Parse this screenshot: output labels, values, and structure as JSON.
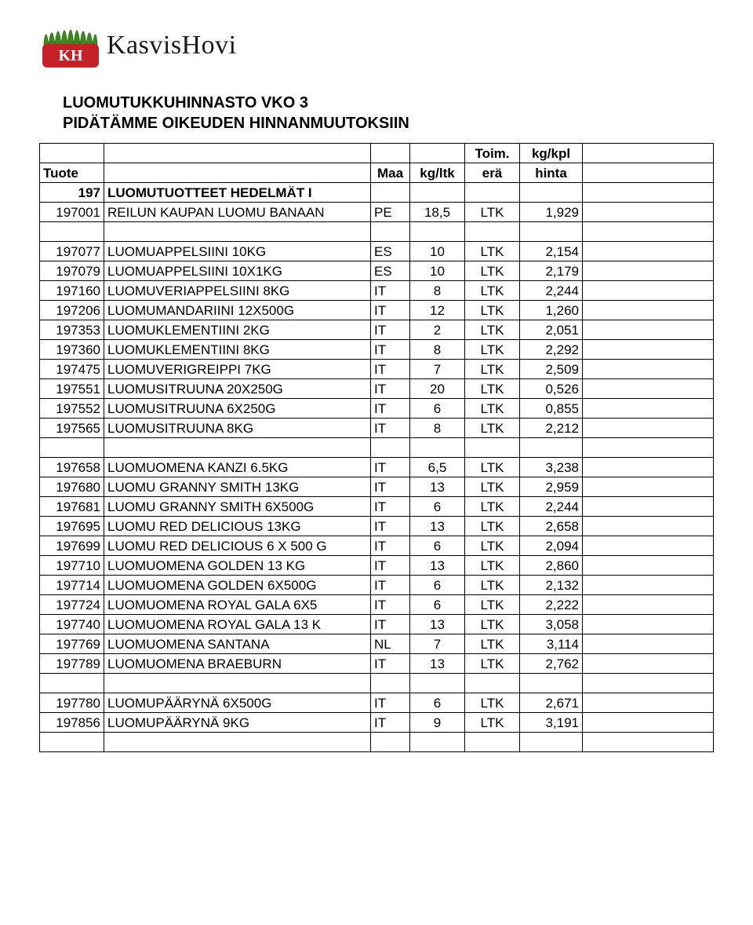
{
  "brand": {
    "name": "KasvisHovi"
  },
  "title": {
    "line1": "LUOMUTUKKUHINNASTO VKO 3",
    "line2": "PIDÄTÄMME OIKEUDEN HINNANMUUTOKSIIN"
  },
  "header": {
    "tuote": "Tuote",
    "maa": "Maa",
    "kg": "kg/ltk",
    "toim": "Toim.",
    "era": "erä",
    "kgkpl": "kg/kpl",
    "hinta": "hinta"
  },
  "category": {
    "code": "197",
    "name": "LUOMUTUOTTEET HEDELMÄT I"
  },
  "rows": [
    {
      "code": "197001",
      "name": "REILUN KAUPAN LUOMU BANAAN",
      "maa": "PE",
      "kg": "18,5",
      "era": "LTK",
      "hinta": "1,929"
    },
    null,
    {
      "code": "197077",
      "name": "LUOMUAPPELSIINI 10KG",
      "maa": "ES",
      "kg": "10",
      "era": "LTK",
      "hinta": "2,154"
    },
    {
      "code": "197079",
      "name": "LUOMUAPPELSIINI 10X1KG",
      "maa": "ES",
      "kg": "10",
      "era": "LTK",
      "hinta": "2,179"
    },
    {
      "code": "197160",
      "name": "LUOMUVERIAPPELSIINI 8KG",
      "maa": "IT",
      "kg": "8",
      "era": "LTK",
      "hinta": "2,244"
    },
    {
      "code": "197206",
      "name": "LUOMUMANDARIINI 12X500G",
      "maa": "IT",
      "kg": "12",
      "era": "LTK",
      "hinta": "1,260"
    },
    {
      "code": "197353",
      "name": "LUOMUKLEMENTIINI 2KG",
      "maa": "IT",
      "kg": "2",
      "era": "LTK",
      "hinta": "2,051"
    },
    {
      "code": "197360",
      "name": "LUOMUKLEMENTIINI 8KG",
      "maa": "IT",
      "kg": "8",
      "era": "LTK",
      "hinta": "2,292"
    },
    {
      "code": "197475",
      "name": "LUOMUVERIGREIPPI 7KG",
      "maa": "IT",
      "kg": "7",
      "era": "LTK",
      "hinta": "2,509"
    },
    {
      "code": "197551",
      "name": "LUOMUSITRUUNA 20X250G",
      "maa": "IT",
      "kg": "20",
      "era": "LTK",
      "hinta": "0,526"
    },
    {
      "code": "197552",
      "name": "LUOMUSITRUUNA 6X250G",
      "maa": "IT",
      "kg": "6",
      "era": "LTK",
      "hinta": "0,855"
    },
    {
      "code": "197565",
      "name": "LUOMUSITRUUNA 8KG",
      "maa": "IT",
      "kg": "8",
      "era": "LTK",
      "hinta": "2,212"
    },
    null,
    {
      "code": "197658",
      "name": "LUOMUOMENA KANZI 6.5KG",
      "maa": "IT",
      "kg": "6,5",
      "era": "LTK",
      "hinta": "3,238"
    },
    {
      "code": "197680",
      "name": "LUOMU GRANNY SMITH 13KG",
      "maa": "IT",
      "kg": "13",
      "era": "LTK",
      "hinta": "2,959"
    },
    {
      "code": "197681",
      "name": "LUOMU GRANNY SMITH 6X500G",
      "maa": "IT",
      "kg": "6",
      "era": "LTK",
      "hinta": "2,244"
    },
    {
      "code": "197695",
      "name": "LUOMU RED DELICIOUS 13KG",
      "maa": "IT",
      "kg": "13",
      "era": "LTK",
      "hinta": "2,658"
    },
    {
      "code": "197699",
      "name": "LUOMU RED DELICIOUS 6 X 500 G",
      "maa": "IT",
      "kg": "6",
      "era": "LTK",
      "hinta": "2,094"
    },
    {
      "code": "197710",
      "name": "LUOMUOMENA GOLDEN 13 KG",
      "maa": "IT",
      "kg": "13",
      "era": "LTK",
      "hinta": "2,860"
    },
    {
      "code": "197714",
      "name": "LUOMUOMENA GOLDEN 6X500G",
      "maa": "IT",
      "kg": "6",
      "era": "LTK",
      "hinta": "2,132"
    },
    {
      "code": "197724",
      "name": "LUOMUOMENA ROYAL GALA 6X5",
      "maa": "IT",
      "kg": "6",
      "era": "LTK",
      "hinta": "2,222"
    },
    {
      "code": "197740",
      "name": "LUOMUOMENA ROYAL GALA 13 K",
      "maa": "IT",
      "kg": "13",
      "era": "LTK",
      "hinta": "3,058"
    },
    {
      "code": "197769",
      "name": "LUOMUOMENA SANTANA",
      "maa": "NL",
      "kg": "7",
      "era": "LTK",
      "hinta": "3,114"
    },
    {
      "code": "197789",
      "name": "LUOMUOMENA BRAEBURN",
      "maa": "IT",
      "kg": "13",
      "era": "LTK",
      "hinta": "2,762"
    },
    null,
    {
      "code": "197780",
      "name": "LUOMUPÄÄRYNÄ 6X500G",
      "maa": "IT",
      "kg": "6",
      "era": "LTK",
      "hinta": "2,671"
    },
    {
      "code": "197856",
      "name": "LUOMUPÄÄRYNÄ 9KG",
      "maa": "IT",
      "kg": "9",
      "era": "LTK",
      "hinta": "3,191"
    },
    null
  ],
  "style": {
    "font_family": "Arial",
    "cell_border_color": "#000000",
    "background_color": "#ffffff",
    "text_color": "#000000",
    "logo_green": "#3a8a1f",
    "logo_green_dark": "#2f6f1a",
    "logo_red": "#c52227",
    "logo_white": "#ffffff",
    "logo_text_color": "#1a1a1a"
  }
}
